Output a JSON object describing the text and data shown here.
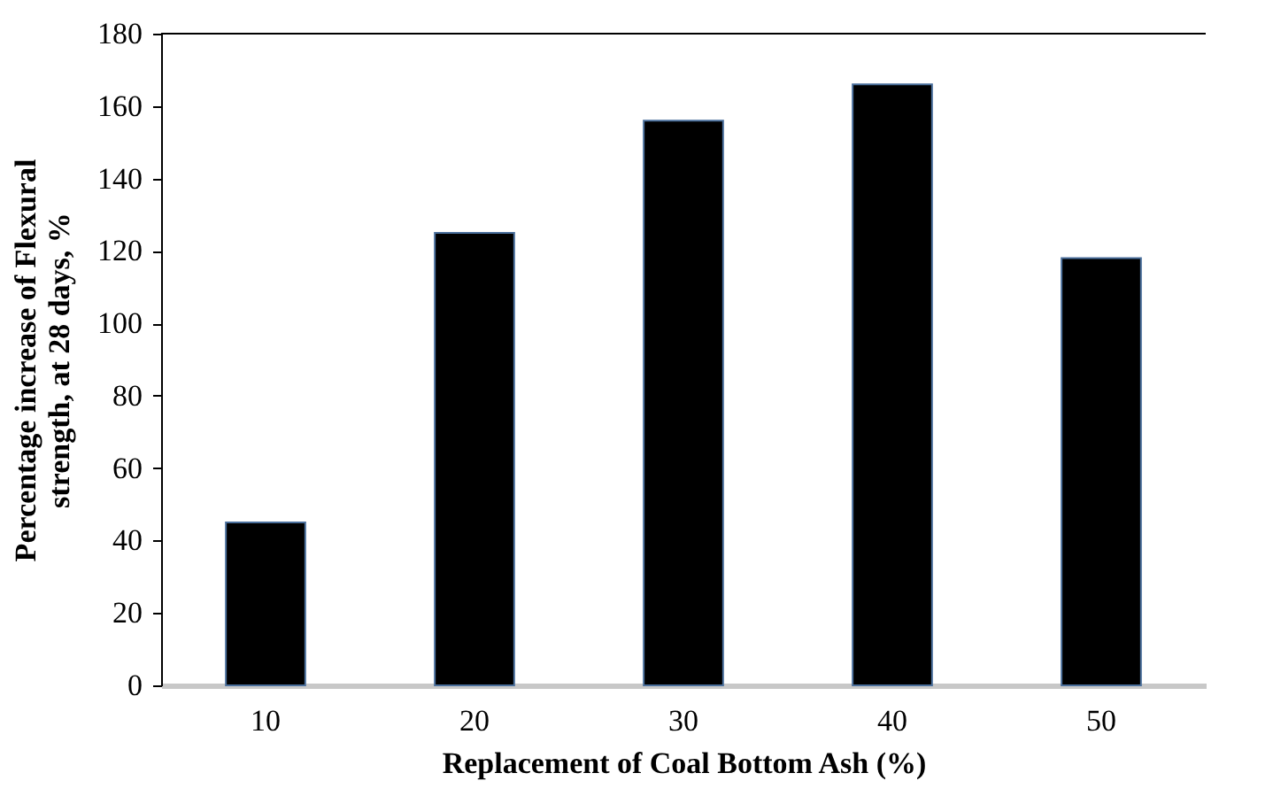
{
  "chart_data": {
    "type": "bar",
    "xlabel": "Replacement of Coal Bottom Ash (%)",
    "ylabel": "Percentage increase of Flexural strength, at 28 days, %",
    "categories": [
      "10",
      "20",
      "30",
      "40",
      "50"
    ],
    "values": [
      45,
      125,
      156,
      166,
      118
    ],
    "color": "#000000",
    "ylim": [
      0,
      180
    ],
    "yticks": [
      0,
      20,
      40,
      60,
      80,
      100,
      120,
      140,
      160,
      180
    ],
    "grid": false
  }
}
